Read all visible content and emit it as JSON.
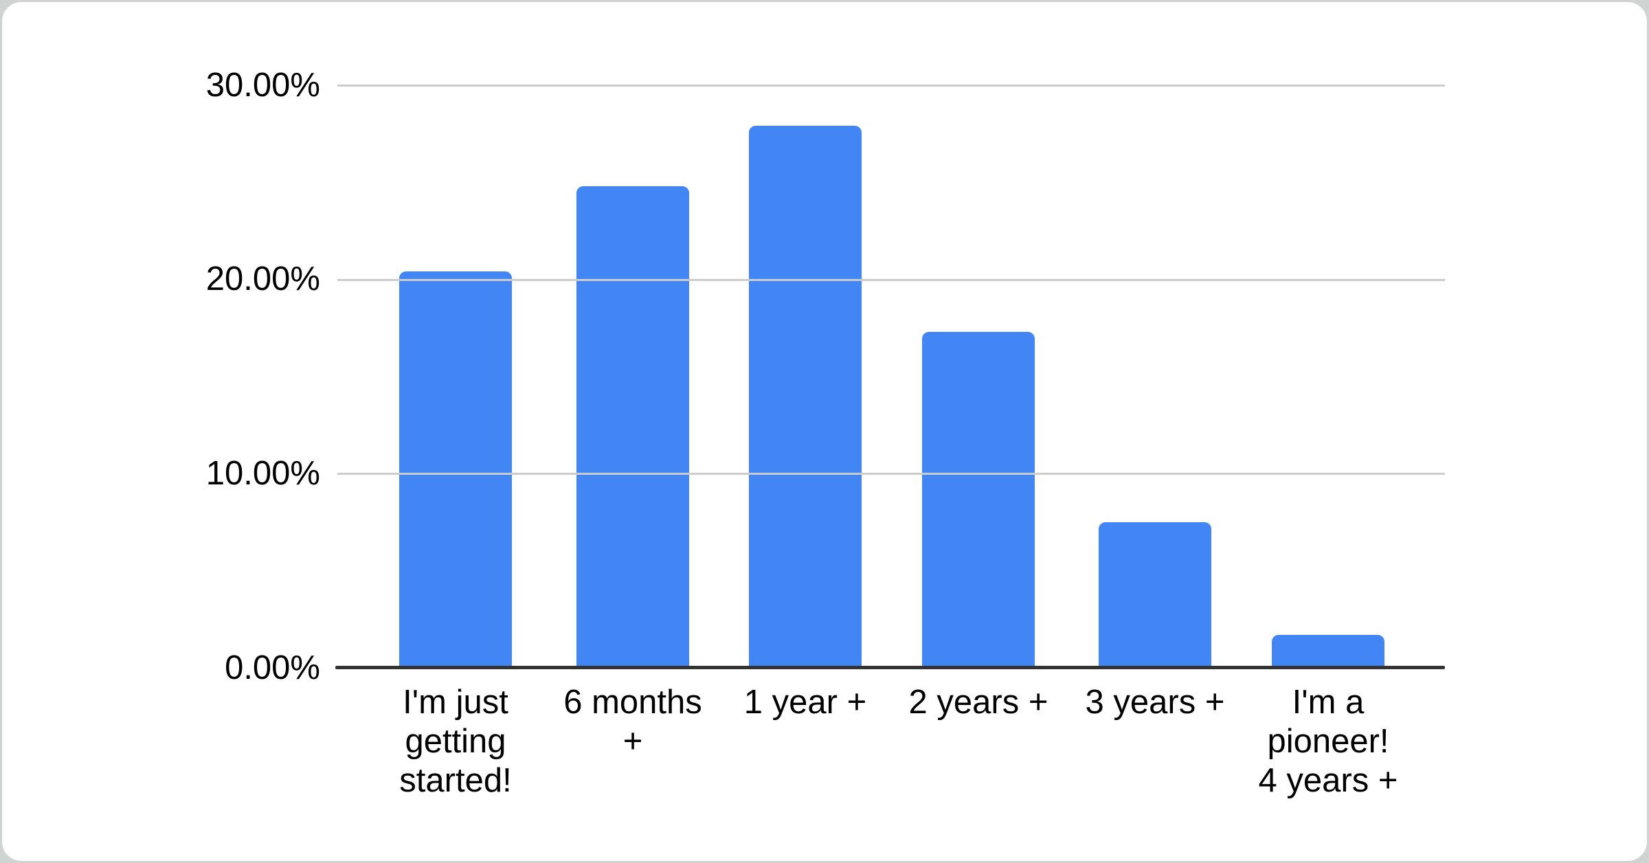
{
  "page": {
    "background_color": "#cfd4d3"
  },
  "card": {
    "background_color": "#ffffff"
  },
  "chart_data": {
    "type": "bar",
    "title": "",
    "xlabel": "",
    "ylabel": "",
    "categories": [
      "I'm just getting started!",
      "6 months +",
      "1 year +",
      "2 years +",
      "3 years +",
      "I'm a pioneer! 4 years +"
    ],
    "category_label_lines": [
      [
        "I'm just",
        "getting",
        "started!"
      ],
      [
        "6 months",
        "+"
      ],
      [
        "1 year +"
      ],
      [
        "2 years +"
      ],
      [
        "3 years +"
      ],
      [
        "I'm a",
        "pioneer!",
        "4 years +"
      ]
    ],
    "values": [
      20.4,
      24.8,
      27.9,
      17.3,
      7.5,
      1.7
    ],
    "unit": "%",
    "ylim": [
      0,
      30
    ],
    "yticks": [
      {
        "label": "30.00%",
        "value": 30
      },
      {
        "label": "20.00%",
        "value": 20
      },
      {
        "label": "10.00%",
        "value": 10
      },
      {
        "label": "0.00%",
        "value": 0
      }
    ],
    "grid": true,
    "legend": "none",
    "bar_color": "#4285f4",
    "gridline_color": "#cccccc",
    "axis_line_color": "#333333",
    "label_color": "#000000"
  }
}
